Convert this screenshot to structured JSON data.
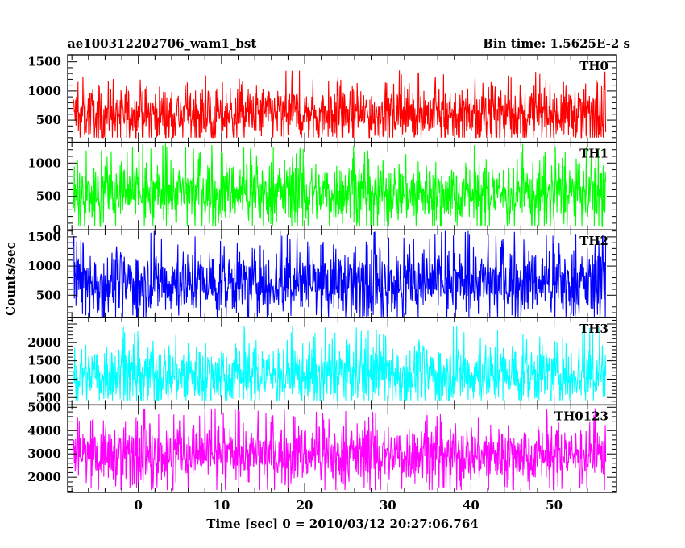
{
  "header": {
    "title_left": "ae100312202706_wam1_bst",
    "title_right": "Bin time: 1.5625E-2 s"
  },
  "chart_data": {
    "type": "line",
    "title": "ae100312202706_wam1_bst",
    "subtitle": "Bin time: 1.5625E-2 s",
    "xlabel": "Time [sec] 0 = 2010/03/12 20:27:06.764",
    "ylabel": "Counts/sec",
    "xlim": [
      -8.5,
      57.5
    ],
    "x_ticks": [
      0,
      10,
      20,
      30,
      40,
      50
    ],
    "x_data_range": [
      -7.8,
      56.2
    ],
    "grid": false,
    "panels": [
      {
        "name": "TH0",
        "color": "#ff0000",
        "ylim": [
          120,
          1620
        ],
        "y_ticks": [
          500,
          1000,
          1500
        ],
        "baseline": 620,
        "spread": 230,
        "min": 200,
        "max": 1600
      },
      {
        "name": "TH1",
        "color": "#00ff00",
        "ylim": [
          0,
          1310
        ],
        "y_ticks": [
          0,
          500,
          1000
        ],
        "baseline": 560,
        "spread": 230,
        "min": 50,
        "max": 1300
      },
      {
        "name": "TH2",
        "color": "#0000ff",
        "ylim": [
          120,
          1620
        ],
        "y_ticks": [
          500,
          1000,
          1500
        ],
        "baseline": 720,
        "spread": 280,
        "min": 130,
        "max": 1600
      },
      {
        "name": "TH3",
        "color": "#00ffff",
        "ylim": [
          300,
          2680
        ],
        "y_ticks": [
          500,
          1000,
          1500,
          2000
        ],
        "baseline": 1150,
        "spread": 420,
        "min": 420,
        "max": 2450
      },
      {
        "name": "TH0123",
        "color": "#ff00ff",
        "ylim": [
          1350,
          5100
        ],
        "y_ticks": [
          2000,
          3000,
          4000,
          5000
        ],
        "baseline": 3000,
        "spread": 620,
        "min": 1450,
        "max": 4950
      }
    ]
  }
}
